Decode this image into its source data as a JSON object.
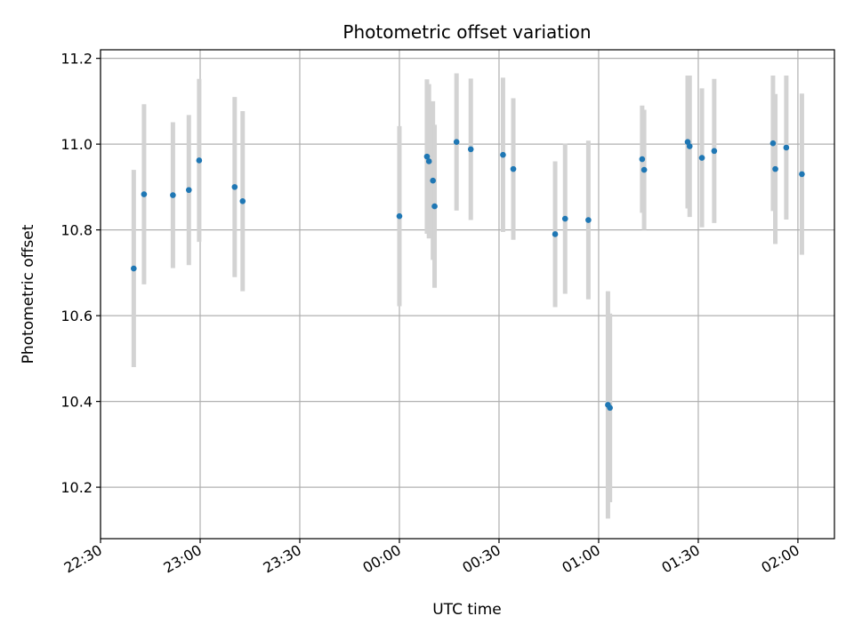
{
  "chart_data": {
    "type": "scatter",
    "title": "Photometric offset variation",
    "xlabel": "UTC time",
    "ylabel": "Photometric offset",
    "grid": true,
    "xlim_minutes": [
      0,
      221
    ],
    "ylim": [
      10.08,
      11.22
    ],
    "x_ticks": [
      {
        "minutes": 0,
        "label": "22:30"
      },
      {
        "minutes": 30,
        "label": "23:00"
      },
      {
        "minutes": 60,
        "label": "23:30"
      },
      {
        "minutes": 90,
        "label": "00:00"
      },
      {
        "minutes": 120,
        "label": "00:30"
      },
      {
        "minutes": 150,
        "label": "01:00"
      },
      {
        "minutes": 180,
        "label": "01:30"
      },
      {
        "minutes": 210,
        "label": "02:00"
      }
    ],
    "y_ticks": [
      {
        "value": 10.2,
        "label": "10.2"
      },
      {
        "value": 10.4,
        "label": "10.4"
      },
      {
        "value": 10.6,
        "label": "10.6"
      },
      {
        "value": 10.8,
        "label": "10.8"
      },
      {
        "value": 11.0,
        "label": "11.0"
      },
      {
        "value": 11.2,
        "label": "11.2"
      }
    ],
    "marker_color": "#1f77b4",
    "errorbar_color": "#d3d3d3",
    "x_unit": "minutes after 22:30 UTC",
    "points": [
      {
        "x": 10.0,
        "y": 10.71,
        "err": 0.23
      },
      {
        "x": 13.1,
        "y": 10.883,
        "err": 0.21
      },
      {
        "x": 21.8,
        "y": 10.881,
        "err": 0.17
      },
      {
        "x": 26.6,
        "y": 10.893,
        "err": 0.175
      },
      {
        "x": 29.7,
        "y": 10.962,
        "err": 0.19
      },
      {
        "x": 40.4,
        "y": 10.9,
        "err": 0.21
      },
      {
        "x": 42.8,
        "y": 10.867,
        "err": 0.21
      },
      {
        "x": 90.0,
        "y": 10.832,
        "err": 0.21
      },
      {
        "x": 98.3,
        "y": 10.971,
        "err": 0.18
      },
      {
        "x": 98.9,
        "y": 10.96,
        "err": 0.18
      },
      {
        "x": 100.1,
        "y": 10.915,
        "err": 0.185
      },
      {
        "x": 100.6,
        "y": 10.855,
        "err": 0.19
      },
      {
        "x": 107.2,
        "y": 11.005,
        "err": 0.16
      },
      {
        "x": 111.5,
        "y": 10.988,
        "err": 0.165
      },
      {
        "x": 121.2,
        "y": 10.975,
        "err": 0.18
      },
      {
        "x": 124.3,
        "y": 10.942,
        "err": 0.165
      },
      {
        "x": 136.9,
        "y": 10.79,
        "err": 0.17
      },
      {
        "x": 139.9,
        "y": 10.826,
        "err": 0.175
      },
      {
        "x": 146.9,
        "y": 10.823,
        "err": 0.185
      },
      {
        "x": 152.8,
        "y": 10.392,
        "err": 0.265
      },
      {
        "x": 153.4,
        "y": 10.385,
        "err": 0.22
      },
      {
        "x": 163.1,
        "y": 10.965,
        "err": 0.125
      },
      {
        "x": 163.7,
        "y": 10.94,
        "err": 0.14
      },
      {
        "x": 176.8,
        "y": 11.005,
        "err": 0.155
      },
      {
        "x": 177.4,
        "y": 10.995,
        "err": 0.165
      },
      {
        "x": 181.1,
        "y": 10.968,
        "err": 0.162
      },
      {
        "x": 184.8,
        "y": 10.984,
        "err": 0.168
      },
      {
        "x": 202.5,
        "y": 11.002,
        "err": 0.158
      },
      {
        "x": 203.2,
        "y": 10.942,
        "err": 0.175
      },
      {
        "x": 206.5,
        "y": 10.992,
        "err": 0.168
      },
      {
        "x": 211.2,
        "y": 10.93,
        "err": 0.188
      }
    ]
  }
}
